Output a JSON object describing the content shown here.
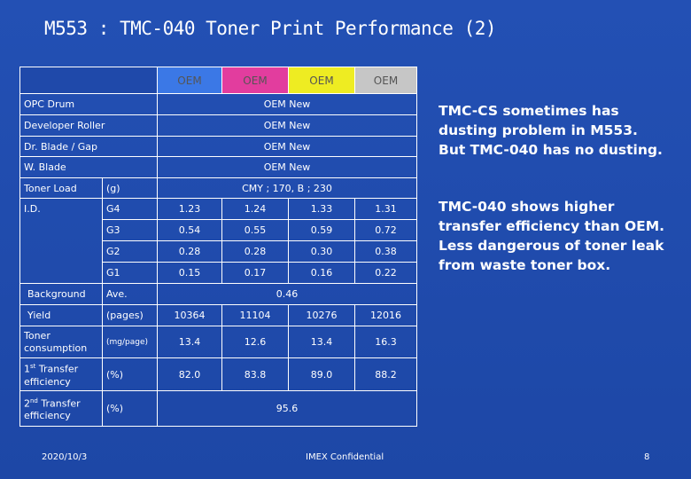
{
  "header": {
    "title": "M553 : TMC-040 Toner Print Performance (2)"
  },
  "table": {
    "columns": [
      "OEM",
      "OEM",
      "OEM",
      "OEM"
    ],
    "rows": [
      [
        "OPC Drum",
        "OEM New"
      ],
      [
        "Developer Roller",
        "OEM New"
      ],
      [
        "Dr. Blade  /  Gap",
        "OEM New"
      ],
      [
        "W. Blade",
        "OEM New"
      ],
      [
        "Toner Load",
        "(g)",
        "CMY ; 170,   B ; 230"
      ],
      [
        "I.D.",
        "G4",
        "1.23",
        "1.24",
        "1.33",
        "1.31"
      ],
      [
        "G3",
        "0.54",
        "0.55",
        "0.59",
        "0.72"
      ],
      [
        "G2",
        "0.28",
        "0.28",
        "0.30",
        "0.38"
      ],
      [
        "G1",
        "0.15",
        "0.17",
        "0.16",
        "0.22"
      ],
      [
        "Background",
        "Ave.",
        "0.46"
      ],
      [
        "Yield",
        "(pages)",
        "10364",
        "11104",
        "10276",
        "12016"
      ],
      [
        "Toner consumption",
        "(mg/page)",
        "13.4",
        "12.6",
        "13.4",
        "16.3"
      ],
      [
        {
          "num": "1",
          "sup": "st",
          "text": "Transfer efficiency"
        },
        "(%)",
        "82.0",
        "83.8",
        "89.0",
        "88.2"
      ],
      [
        {
          "num": "2",
          "sup": "nd",
          "text": "Transfer efficiency"
        },
        "(%)",
        "95.6"
      ]
    ]
  },
  "notes": [
    [
      "TMC-CS sometimes has",
      "dusting problem in M553.",
      "But TMC-040 has no dusting."
    ],
    [
      "TMC-040 shows higher",
      "transfer efficiency than OEM.",
      "Less dangerous of toner leak",
      "from waste toner box."
    ]
  ],
  "footer": {
    "date": "2020/10/3",
    "confidential": "IMEX Confidential",
    "page": "8"
  }
}
